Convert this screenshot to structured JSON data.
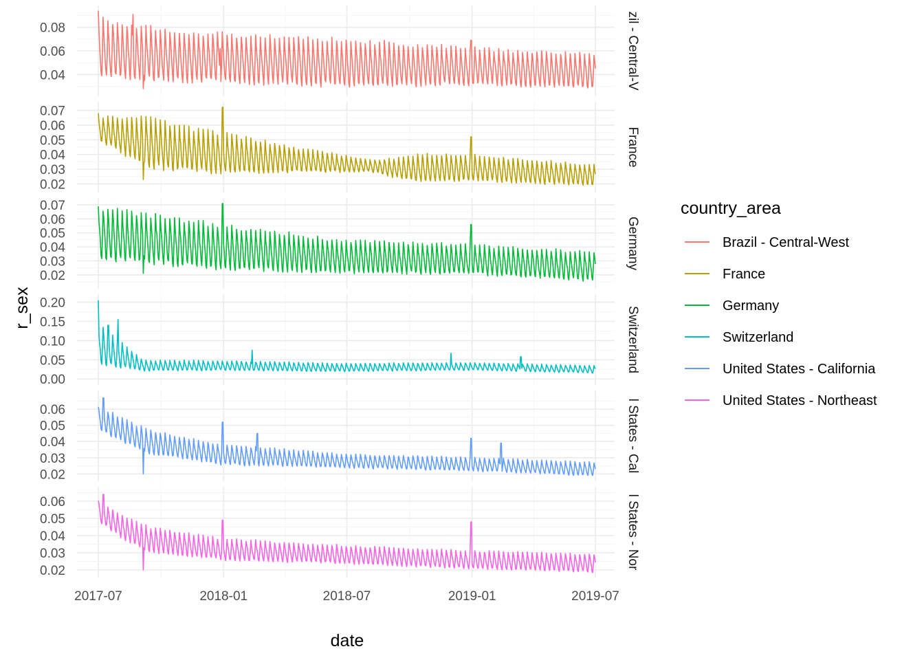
{
  "chart_data": {
    "type": "line",
    "facet_by": "country_area",
    "xlabel": "date",
    "ylabel": "r_sex",
    "legend": {
      "title": "country_area",
      "position": "right"
    },
    "grid": true,
    "x_range": [
      "2017-07-01",
      "2019-07-01"
    ],
    "x_ticks": [
      "2017-07",
      "2018-01",
      "2018-07",
      "2019-01",
      "2019-07"
    ],
    "panels": [
      {
        "name": "Brazil - Central-West",
        "strip_label": "zil - Central-V",
        "color": "#F8766D",
        "ylim": [
          0.025,
          0.095
        ],
        "y_ticks": [
          "0.04",
          "0.06",
          "0.08"
        ],
        "baseline": [
          [
            0,
            0.063
          ],
          [
            0.12,
            0.057
          ],
          [
            0.25,
            0.054
          ],
          [
            0.5,
            0.05
          ],
          [
            0.75,
            0.047
          ],
          [
            1.0,
            0.043
          ]
        ],
        "amplitude": [
          [
            0,
            0.024
          ],
          [
            0.2,
            0.02
          ],
          [
            0.5,
            0.019
          ],
          [
            0.75,
            0.015
          ],
          [
            1.0,
            0.014
          ]
        ],
        "spikes": [
          [
            0.0,
            0.094
          ],
          [
            0.07,
            0.091
          ],
          [
            0.09,
            0.028
          ],
          [
            0.245,
            0.062
          ],
          [
            0.75,
            0.069
          ]
        ]
      },
      {
        "name": "France",
        "strip_label": "France",
        "color": "#B79F00",
        "ylim": [
          0.017,
          0.073
        ],
        "y_ticks": [
          "0.02",
          "0.03",
          "0.04",
          "0.05",
          "0.06",
          "0.07"
        ],
        "baseline": [
          [
            0,
            0.058
          ],
          [
            0.08,
            0.05
          ],
          [
            0.15,
            0.045
          ],
          [
            0.25,
            0.041
          ],
          [
            0.45,
            0.035
          ],
          [
            0.6,
            0.031
          ],
          [
            0.75,
            0.031
          ],
          [
            1.0,
            0.026
          ]
        ],
        "amplitude": [
          [
            0,
            0.008
          ],
          [
            0.1,
            0.016
          ],
          [
            0.25,
            0.013
          ],
          [
            0.4,
            0.008
          ],
          [
            0.55,
            0.004
          ],
          [
            0.65,
            0.009
          ],
          [
            0.8,
            0.008
          ],
          [
            1.0,
            0.007
          ]
        ],
        "spikes": [
          [
            0.0,
            0.068
          ],
          [
            0.09,
            0.023
          ],
          [
            0.25,
            0.072
          ],
          [
            0.75,
            0.052
          ]
        ]
      },
      {
        "name": "Germany",
        "strip_label": "Germany",
        "color": "#00BA38",
        "ylim": [
          0.013,
          0.072
        ],
        "y_ticks": [
          "0.02",
          "0.03",
          "0.04",
          "0.05",
          "0.06",
          "0.07"
        ],
        "baseline": [
          [
            0,
            0.05
          ],
          [
            0.25,
            0.04
          ],
          [
            0.5,
            0.033
          ],
          [
            0.75,
            0.031
          ],
          [
            1.0,
            0.026
          ]
        ],
        "amplitude": [
          [
            0,
            0.018
          ],
          [
            0.25,
            0.015
          ],
          [
            0.5,
            0.011
          ],
          [
            0.75,
            0.01
          ],
          [
            1.0,
            0.01
          ]
        ],
        "spikes": [
          [
            0.0,
            0.069
          ],
          [
            0.09,
            0.021
          ],
          [
            0.25,
            0.071
          ],
          [
            0.75,
            0.056
          ]
        ]
      },
      {
        "name": "Switzerland",
        "strip_label": "Switzerland",
        "color": "#00BFC4",
        "ylim": [
          -0.005,
          0.21
        ],
        "y_ticks": [
          "0.00",
          "0.05",
          "0.10",
          "0.15",
          "0.20"
        ],
        "baseline": [
          [
            0,
            0.09
          ],
          [
            0.05,
            0.06
          ],
          [
            0.09,
            0.035
          ],
          [
            0.25,
            0.035
          ],
          [
            0.5,
            0.03
          ],
          [
            0.75,
            0.033
          ],
          [
            1.0,
            0.025
          ]
        ],
        "amplitude": [
          [
            0,
            0.05
          ],
          [
            0.05,
            0.03
          ],
          [
            0.09,
            0.013
          ],
          [
            0.25,
            0.012
          ],
          [
            0.5,
            0.01
          ],
          [
            1.0,
            0.009
          ]
        ],
        "spikes": [
          [
            0.0,
            0.205
          ],
          [
            0.02,
            0.14
          ],
          [
            0.04,
            0.155
          ],
          [
            0.31,
            0.075
          ],
          [
            0.71,
            0.067
          ],
          [
            0.85,
            0.058
          ]
        ]
      },
      {
        "name": "United States - California",
        "strip_label": "l States - Cal",
        "color": "#619CFF",
        "ylim": [
          0.018,
          0.069
        ],
        "y_ticks": [
          "0.02",
          "0.03",
          "0.04",
          "0.05",
          "0.06"
        ],
        "baseline": [
          [
            0,
            0.055
          ],
          [
            0.05,
            0.047
          ],
          [
            0.1,
            0.04
          ],
          [
            0.25,
            0.032
          ],
          [
            0.5,
            0.028
          ],
          [
            0.75,
            0.026
          ],
          [
            1.0,
            0.023
          ]
        ],
        "amplitude": [
          [
            0,
            0.007
          ],
          [
            0.1,
            0.007
          ],
          [
            0.25,
            0.006
          ],
          [
            0.5,
            0.004
          ],
          [
            0.75,
            0.004
          ],
          [
            1.0,
            0.004
          ]
        ],
        "spikes": [
          [
            0.01,
            0.067
          ],
          [
            0.09,
            0.02
          ],
          [
            0.25,
            0.052
          ],
          [
            0.32,
            0.045
          ],
          [
            0.75,
            0.042
          ],
          [
            0.81,
            0.039
          ]
        ]
      },
      {
        "name": "United States - Northeast",
        "strip_label": "l States - Nor",
        "color": "#F564E3",
        "ylim": [
          0.018,
          0.066
        ],
        "y_ticks": [
          "0.02",
          "0.03",
          "0.04",
          "0.05",
          "0.06"
        ],
        "baseline": [
          [
            0,
            0.055
          ],
          [
            0.05,
            0.045
          ],
          [
            0.1,
            0.038
          ],
          [
            0.25,
            0.032
          ],
          [
            0.5,
            0.029
          ],
          [
            0.75,
            0.026
          ],
          [
            1.0,
            0.024
          ]
        ],
        "amplitude": [
          [
            0,
            0.006
          ],
          [
            0.1,
            0.007
          ],
          [
            0.25,
            0.006
          ],
          [
            0.5,
            0.005
          ],
          [
            0.75,
            0.005
          ],
          [
            1.0,
            0.005
          ]
        ],
        "spikes": [
          [
            0.01,
            0.064
          ],
          [
            0.09,
            0.02
          ],
          [
            0.25,
            0.049
          ],
          [
            0.75,
            0.048
          ]
        ]
      }
    ]
  }
}
